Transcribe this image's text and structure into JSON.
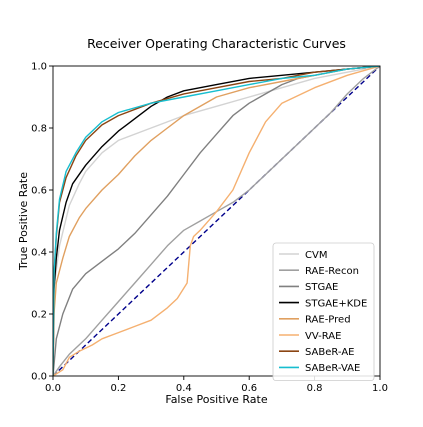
{
  "chart_data": {
    "type": "line",
    "title": "Receiver Operating Characteristic Curves",
    "xlabel": "False Positive Rate",
    "ylabel": "True Positive Rate",
    "xlim": [
      0.0,
      1.0
    ],
    "ylim": [
      0.0,
      1.0
    ],
    "xticks": [
      "0.0",
      "0.2",
      "0.4",
      "0.6",
      "0.8",
      "1.0"
    ],
    "yticks": [
      "0.0",
      "0.2",
      "0.4",
      "0.6",
      "0.8",
      "1.0"
    ],
    "grid": false,
    "legend_position": "lower-right",
    "diagonal": {
      "x": [
        0,
        1
      ],
      "y": [
        0,
        1
      ],
      "color": "#00008b",
      "style": "dashed"
    },
    "series": [
      {
        "name": "CVM",
        "color": "#d3d3d3",
        "x": [
          0.0,
          0.005,
          0.02,
          0.05,
          0.08,
          0.1,
          0.15,
          0.2,
          0.3,
          0.4,
          0.5,
          0.6,
          0.7,
          0.8,
          0.9,
          1.0
        ],
        "y": [
          0.0,
          0.3,
          0.42,
          0.55,
          0.62,
          0.66,
          0.72,
          0.76,
          0.8,
          0.84,
          0.87,
          0.9,
          0.93,
          0.96,
          0.98,
          1.0
        ]
      },
      {
        "name": "RAE-Recon",
        "color": "#a0a0a0",
        "x": [
          0.0,
          0.02,
          0.05,
          0.1,
          0.15,
          0.2,
          0.25,
          0.3,
          0.35,
          0.4,
          0.45,
          0.5,
          0.55,
          0.6,
          0.65,
          0.7,
          0.75,
          0.8,
          0.85,
          0.9,
          0.95,
          1.0
        ],
        "y": [
          0.0,
          0.03,
          0.07,
          0.12,
          0.18,
          0.24,
          0.3,
          0.36,
          0.42,
          0.47,
          0.5,
          0.53,
          0.56,
          0.6,
          0.65,
          0.7,
          0.75,
          0.8,
          0.85,
          0.91,
          0.96,
          1.0
        ]
      },
      {
        "name": "STGAE",
        "color": "#808080",
        "x": [
          0.0,
          0.01,
          0.03,
          0.06,
          0.1,
          0.15,
          0.2,
          0.25,
          0.3,
          0.35,
          0.4,
          0.45,
          0.5,
          0.55,
          0.6,
          0.65,
          0.7,
          0.75,
          0.8,
          0.9,
          1.0
        ],
        "y": [
          0.0,
          0.12,
          0.2,
          0.28,
          0.33,
          0.37,
          0.41,
          0.46,
          0.52,
          0.58,
          0.65,
          0.72,
          0.78,
          0.84,
          0.88,
          0.91,
          0.94,
          0.96,
          0.97,
          0.99,
          1.0
        ]
      },
      {
        "name": "STGAE+KDE",
        "color": "#000000",
        "x": [
          0.0,
          0.003,
          0.01,
          0.02,
          0.04,
          0.06,
          0.1,
          0.15,
          0.2,
          0.25,
          0.3,
          0.35,
          0.4,
          0.5,
          0.6,
          0.7,
          0.8,
          0.9,
          1.0
        ],
        "y": [
          0.0,
          0.28,
          0.38,
          0.47,
          0.56,
          0.62,
          0.68,
          0.74,
          0.79,
          0.83,
          0.87,
          0.9,
          0.92,
          0.94,
          0.96,
          0.97,
          0.98,
          0.99,
          1.0
        ]
      },
      {
        "name": "RAE-Pred",
        "color": "#e0a060",
        "x": [
          0.0,
          0.003,
          0.01,
          0.03,
          0.05,
          0.08,
          0.1,
          0.15,
          0.2,
          0.25,
          0.3,
          0.35,
          0.4,
          0.5,
          0.6,
          0.7,
          0.8,
          0.9,
          1.0
        ],
        "y": [
          0.0,
          0.2,
          0.3,
          0.38,
          0.45,
          0.51,
          0.54,
          0.6,
          0.65,
          0.71,
          0.76,
          0.8,
          0.84,
          0.9,
          0.93,
          0.95,
          0.97,
          0.99,
          1.0
        ]
      },
      {
        "name": "VV-RAE",
        "color": "#f5b070",
        "x": [
          0.0,
          0.03,
          0.05,
          0.08,
          0.12,
          0.15,
          0.2,
          0.25,
          0.3,
          0.35,
          0.38,
          0.41,
          0.42,
          0.43,
          0.45,
          0.5,
          0.55,
          0.6,
          0.65,
          0.7,
          0.8,
          0.9,
          1.0
        ],
        "y": [
          0.0,
          0.02,
          0.06,
          0.08,
          0.1,
          0.12,
          0.14,
          0.16,
          0.18,
          0.22,
          0.25,
          0.3,
          0.42,
          0.45,
          0.47,
          0.53,
          0.6,
          0.72,
          0.82,
          0.88,
          0.93,
          0.97,
          1.0
        ]
      },
      {
        "name": "SABeR-AE",
        "color": "#8b4513",
        "x": [
          0.0,
          0.003,
          0.01,
          0.02,
          0.04,
          0.07,
          0.1,
          0.15,
          0.2,
          0.3,
          0.4,
          0.5,
          0.6,
          0.7,
          0.8,
          0.9,
          1.0
        ],
        "y": [
          0.0,
          0.32,
          0.45,
          0.56,
          0.64,
          0.71,
          0.76,
          0.81,
          0.84,
          0.88,
          0.91,
          0.93,
          0.95,
          0.96,
          0.98,
          0.99,
          1.0
        ]
      },
      {
        "name": "SABeR-VAE",
        "color": "#17becf",
        "x": [
          0.0,
          0.003,
          0.01,
          0.02,
          0.04,
          0.07,
          0.1,
          0.15,
          0.2,
          0.3,
          0.4,
          0.5,
          0.6,
          0.7,
          0.8,
          0.9,
          1.0
        ],
        "y": [
          0.0,
          0.33,
          0.46,
          0.57,
          0.66,
          0.72,
          0.77,
          0.82,
          0.85,
          0.88,
          0.9,
          0.92,
          0.94,
          0.96,
          0.97,
          0.99,
          1.0
        ]
      }
    ]
  }
}
